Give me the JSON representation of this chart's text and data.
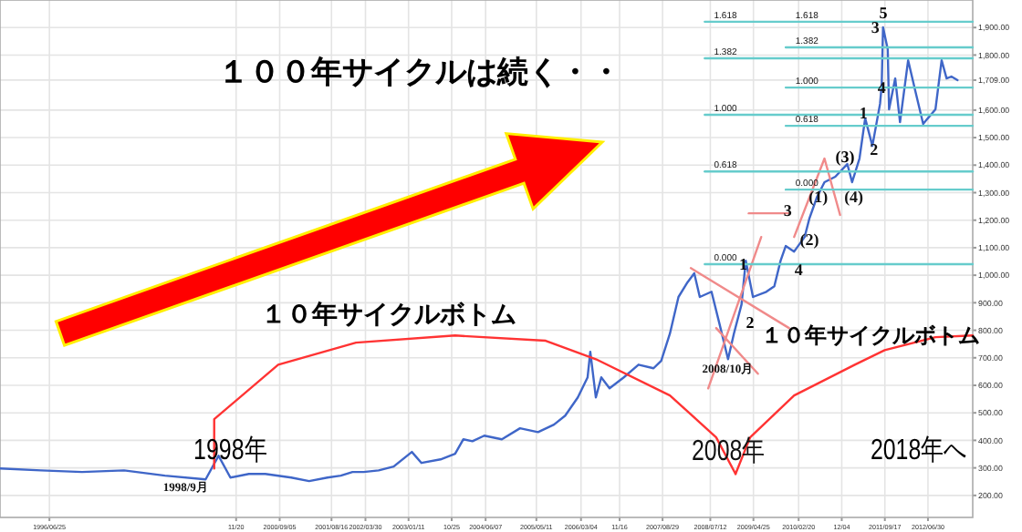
{
  "chart_data": {
    "type": "line",
    "xlim": [
      "1995-08-01",
      "2013-04-24"
    ],
    "xticks": [
      {
        "value": "1996-06-25",
        "label": "1996/06/25"
      },
      {
        "value": "1999-11-20",
        "label": "11/20"
      },
      {
        "value": "2000-09-05",
        "label": "2000/09/05"
      },
      {
        "value": "2001-08-16",
        "label": "2001/08/16"
      },
      {
        "value": "2002-03-30",
        "label": "2002/03/30"
      },
      {
        "value": "2003-01-11",
        "label": "2003/01/11"
      },
      {
        "value": "2003-10-25",
        "label": "10/25"
      },
      {
        "value": "2004-06-07",
        "label": "2004/06/07"
      },
      {
        "value": "2005-05-11",
        "label": "2005/05/11"
      },
      {
        "value": "2006-03-04",
        "label": "2006/03/04"
      },
      {
        "value": "2006-11-16",
        "label": "11/16"
      },
      {
        "value": "2007-08-29",
        "label": "2007/08/29"
      },
      {
        "value": "2008-07-12",
        "label": "2008/07/12"
      },
      {
        "value": "2009-04-25",
        "label": "2009/04/25"
      },
      {
        "value": "2010-02-20",
        "label": "2010/02/20"
      },
      {
        "value": "2010-12-04",
        "label": "12/04"
      },
      {
        "value": "2011-09-17",
        "label": "2011/09/17"
      },
      {
        "value": "2012-06-30",
        "label": "2012/06/30"
      }
    ],
    "ylim": [
      120,
      2000
    ],
    "yticks": [
      {
        "value": 200,
        "label": "200.00"
      },
      {
        "value": 300,
        "label": "300.00"
      },
      {
        "value": 400,
        "label": "400.00"
      },
      {
        "value": 500,
        "label": "500.00"
      },
      {
        "value": 600,
        "label": "600.00"
      },
      {
        "value": 700,
        "label": "700.00"
      },
      {
        "value": 800,
        "label": "800.00"
      },
      {
        "value": 900,
        "label": "900.00"
      },
      {
        "value": 1000,
        "label": "1,000.00"
      },
      {
        "value": 1100,
        "label": "1,100.00"
      },
      {
        "value": 1200,
        "label": "1,200.00"
      },
      {
        "value": 1300,
        "label": "1,300.00"
      },
      {
        "value": 1400,
        "label": "1,400.00"
      },
      {
        "value": 1500,
        "label": "1,500.00"
      },
      {
        "value": 1600,
        "label": "1,600.00"
      },
      {
        "value": 1709,
        "label": "1,709.00"
      },
      {
        "value": 1800,
        "label": "1,800.00"
      },
      {
        "value": 1900,
        "label": "1,900.00"
      }
    ],
    "grid": true,
    "series": [
      {
        "color": "#3f66c8",
        "x": [
          "1995-08-01",
          "1996-04-30",
          "1997-01-28",
          "1997-11-04",
          "1998-08-03",
          "1999-05-01",
          "1999-07-26",
          "1999-10-13",
          "2000-02-13",
          "2000-06-01",
          "2000-11-21",
          "2001-03-20",
          "2001-07-20",
          "2001-10-17",
          "2002-01-03",
          "2002-03-18",
          "2002-06-26",
          "2002-10-04",
          "2003-02-02",
          "2003-04-07",
          "2003-08-12",
          "2003-11-17",
          "2004-01-11",
          "2004-03-11",
          "2004-05-29",
          "2004-09-23",
          "2005-01-22",
          "2005-05-22",
          "2005-09-05",
          "2005-11-19",
          "2006-02-11",
          "2006-04-17",
          "2006-05-05",
          "2006-06-11",
          "2006-07-17",
          "2006-09-10",
          "2006-12-14",
          "2007-03-22",
          "2007-06-30",
          "2007-08-20",
          "2007-10-17",
          "2007-12-13",
          "2008-02-11",
          "2008-03-27",
          "2008-05-03",
          "2008-07-20",
          "2008-09-09",
          "2008-11-07",
          "2008-12-16",
          "2009-02-05",
          "2009-03-05",
          "2009-04-22",
          "2009-07-20",
          "2009-09-11",
          "2009-10-23",
          "2009-11-26",
          "2010-01-21",
          "2010-04-01",
          "2010-05-02",
          "2010-06-23",
          "2010-08-11",
          "2010-10-22",
          "2011-01-10",
          "2011-02-11",
          "2011-04-01",
          "2011-05-09",
          "2011-06-26",
          "2011-08-16",
          "2011-08-27",
          "2011-09-05",
          "2011-10-06",
          "2011-10-15",
          "2011-11-25",
          "2011-12-27",
          "2012-02-19",
          "2012-04-07",
          "2012-05-29",
          "2012-08-19",
          "2012-09-29",
          "2012-11-01",
          "2012-12-03",
          "2013-01-13"
        ],
        "values": [
          298,
          291,
          285,
          291,
          272,
          258,
          344,
          265,
          278,
          278,
          265,
          252,
          265,
          272,
          285,
          285,
          291,
          305,
          358,
          318,
          331,
          351,
          404,
          397,
          417,
          404,
          444,
          430,
          457,
          490,
          556,
          629,
          722,
          556,
          629,
          589,
          629,
          675,
          662,
          689,
          788,
          921,
          974,
          1007,
          921,
          940,
          828,
          695,
          788,
          894,
          1053,
          921,
          940,
          960,
          1053,
          1106,
          1086,
          1139,
          1205,
          1285,
          1338,
          1358,
          1404,
          1338,
          1424,
          1570,
          1470,
          1623,
          1689,
          1901,
          1821,
          1603,
          1715,
          1556,
          1781,
          1669,
          1550,
          1603,
          1781,
          1715,
          1722,
          1709
        ]
      },
      {
        "color": "#ff3333",
        "x": [
          "1999-06-27",
          "1999-06-27",
          "2000-08-26",
          "2002-01-26",
          "2003-11-17",
          "2005-07-12",
          "2006-06-11",
          "2007-10-17",
          "2008-08-20",
          "2008-12-27"
        ],
        "values": [
          298,
          477,
          675,
          755,
          781,
          762,
          695,
          563,
          411,
          278
        ]
      },
      {
        "color": "#ff3333",
        "x": [
          "2008-12-27",
          "2009-04-03",
          "2010-01-21",
          "2011-03-01",
          "2011-09-16",
          "2012-08-19",
          "2013-04-24"
        ],
        "values": [
          278,
          411,
          563,
          675,
          728,
          775,
          781
        ]
      },
      {
        "color": "#f08a8a",
        "x": [
          "2008-03-04",
          "2009-12-18"
        ],
        "values": [
          1026,
          808
        ]
      },
      {
        "color": "#f08a8a",
        "x": [
          "2008-08-20",
          "2009-05-25"
        ],
        "values": [
          808,
          642
        ]
      },
      {
        "color": "#f08a8a",
        "x": [
          "2008-06-28",
          "2009-06-16"
        ],
        "values": [
          589,
          1139
        ]
      },
      {
        "color": "#f08a8a",
        "x": [
          "2009-03-25",
          "2009-12-18"
        ],
        "values": [
          1225,
          1225
        ]
      },
      {
        "color": "#f08a8a",
        "x": [
          "2010-01-21",
          "2010-08-11",
          "2010-11-23"
        ],
        "values": [
          1139,
          1424,
          1219
        ]
      },
      {
        "color": "#66cccc",
        "x": [
          "2008-06-05",
          "2013-04-24"
        ],
        "values": [
          1921,
          1921
        ]
      },
      {
        "color": "#66cccc",
        "x": [
          "2008-06-05",
          "2013-04-24"
        ],
        "values": [
          1788,
          1788
        ]
      },
      {
        "color": "#66cccc",
        "x": [
          "2008-06-05",
          "2013-04-24"
        ],
        "values": [
          1583,
          1583
        ]
      },
      {
        "color": "#66cccc",
        "x": [
          "2008-06-05",
          "2013-04-24"
        ],
        "values": [
          1377,
          1377
        ]
      },
      {
        "color": "#66cccc",
        "x": [
          "2008-06-05",
          "2013-04-24"
        ],
        "values": [
          1040,
          1040
        ]
      },
      {
        "color": "#66cccc",
        "x": [
          "2009-11-26",
          "2013-04-24"
        ],
        "values": [
          1828,
          1828
        ]
      },
      {
        "color": "#66cccc",
        "x": [
          "2009-11-26",
          "2013-04-24"
        ],
        "values": [
          1682,
          1682
        ]
      },
      {
        "color": "#66cccc",
        "x": [
          "2009-11-26",
          "2013-04-24"
        ],
        "values": [
          1543,
          1543
        ]
      },
      {
        "color": "#66cccc",
        "x": [
          "2009-11-26",
          "2013-04-24"
        ],
        "values": [
          1311,
          1311
        ]
      }
    ],
    "annotations": [
      "１００年サイクルは続く・・",
      "１０年サイクルボトム",
      "１０年サイクルボトム",
      "2018年へ",
      "2",
      "(3)",
      "5",
      "1998年",
      {
        "text": "2008年",
        "x": "2008-11-07",
        "y": 364
      },
      {
        "text": "1998/9月",
        "x": "1998-12-21",
        "y": 232
      },
      {
        "text": "2008/10月",
        "x": "2008-11-07",
        "y": 662
      },
      {
        "text": "1",
        "x": "2009-02-16",
        "y": 1040
      },
      {
        "text": "3",
        "x": "2009-12-09",
        "y": 1238
      },
      {
        "text": "4",
        "x": "2010-02-20",
        "y": 1020
      },
      {
        "text": "(1)",
        "x": "2010-07-01",
        "y": 1285
      },
      {
        "text": "(2)",
        "x": "2010-05-02",
        "y": 1132
      },
      {
        "text": "(4)",
        "x": "2011-02-22",
        "y": 1285
      },
      {
        "text": "1",
        "x": "2011-04-28",
        "y": 1589
      },
      {
        "text": "2",
        "x": "2011-07-07",
        "y": 1457
      },
      {
        "text": "3",
        "x": "2011-07-16",
        "y": 1901
      },
      {
        "text": "4",
        "x": "2011-08-27",
        "y": 1682
      },
      {
        "text": "1.618",
        "x": "2008-08-06",
        "y": 1921
      },
      {
        "text": "1.382",
        "x": "2008-08-06",
        "y": 1788
      },
      {
        "text": "1.000",
        "x": "2008-08-06",
        "y": 1583
      },
      {
        "text": "0.618",
        "x": "2008-08-06",
        "y": 1377
      },
      {
        "text": "0.000",
        "x": "2008-08-06",
        "y": 1040
      },
      {
        "text": "1.618",
        "x": "2010-01-30",
        "y": 1921
      },
      {
        "text": "1.382",
        "x": "2010-01-30",
        "y": 1828
      },
      {
        "text": "1.000",
        "x": "2010-01-30",
        "y": 1682
      },
      {
        "text": "0.618",
        "x": "2010-01-30",
        "y": 1543
      },
      {
        "text": "0.000",
        "x": "2010-01-30",
        "y": 1311
      }
    ]
  }
}
